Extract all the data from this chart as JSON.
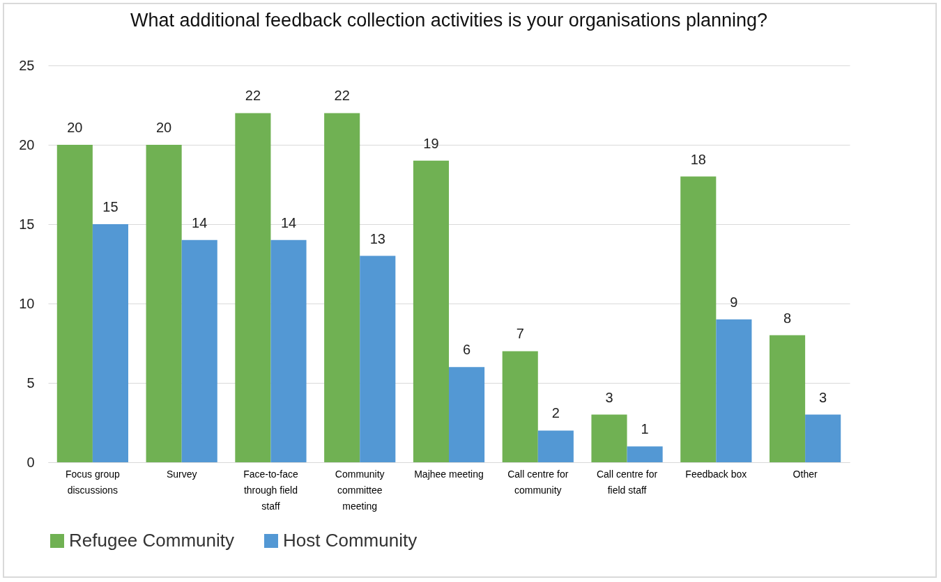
{
  "chart_data": {
    "type": "bar",
    "title": "What additional feedback collection activities is your organisations planning?",
    "categories": [
      "Focus group discussions",
      "Survey",
      "Face-to-face through field staff",
      "Community committee meeting",
      "Majhee meeting",
      "Call centre for community",
      "Call centre for field staff",
      "Feedback box",
      "Other"
    ],
    "series": [
      {
        "name": "Refugee Community",
        "color": "#70b153",
        "values": [
          20,
          20,
          22,
          22,
          19,
          7,
          3,
          18,
          8
        ]
      },
      {
        "name": "Host Community",
        "color": "#5398d4",
        "values": [
          15,
          14,
          14,
          13,
          6,
          2,
          1,
          9,
          3
        ]
      }
    ],
    "ylim": [
      0,
      25
    ],
    "yticks": [
      0,
      5,
      10,
      15,
      20,
      25
    ],
    "grid": "y",
    "legend": "bottom",
    "data_labels": true
  }
}
